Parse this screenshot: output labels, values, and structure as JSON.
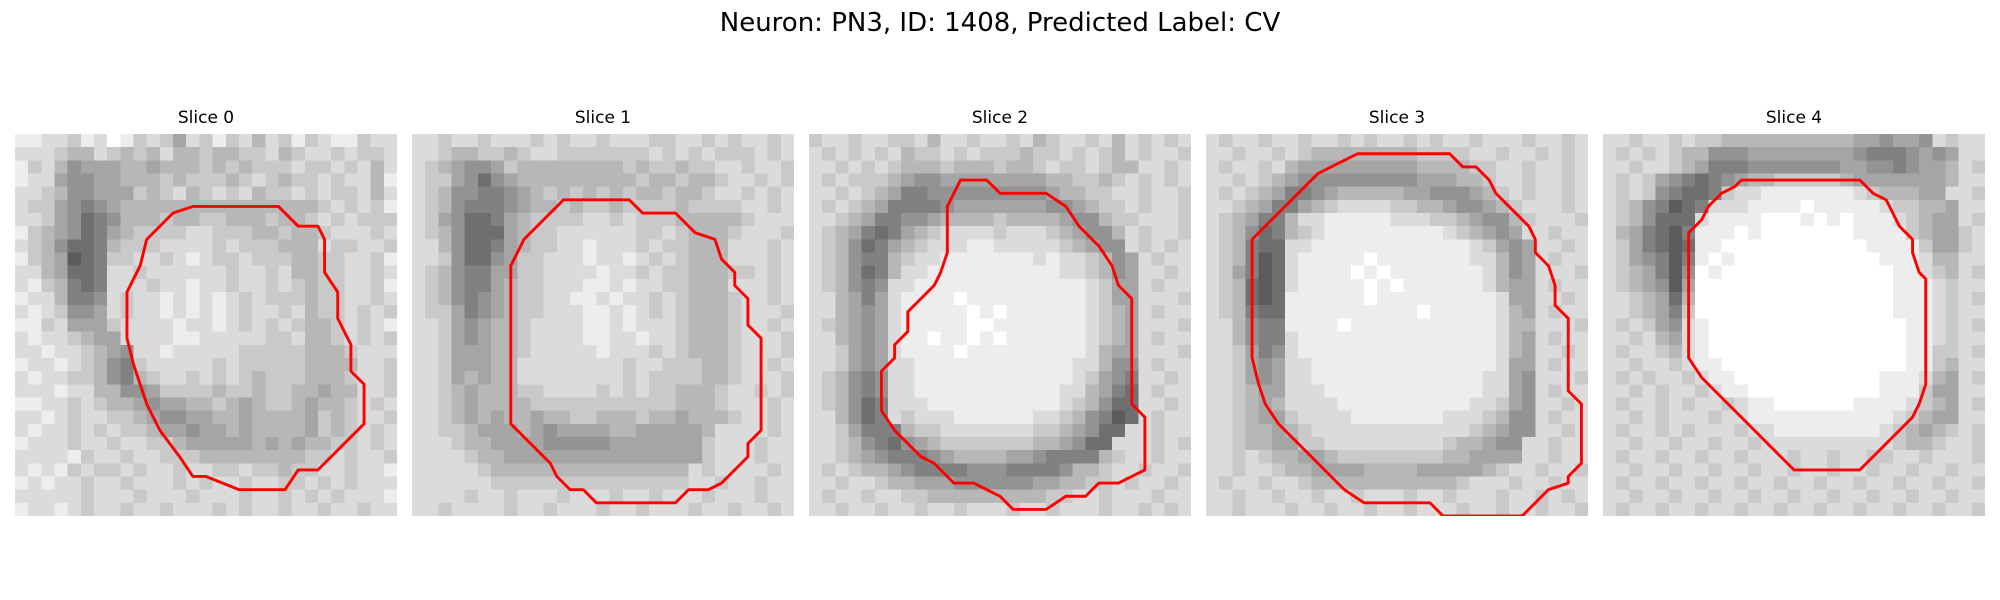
{
  "figure": {
    "title": "Neuron: PN3, ID: 1408, Predicted Label: CV"
  },
  "panels": [
    {
      "title": "Slice 0",
      "colors": {
        "contour": "#ff0000",
        "dark": "#000000",
        "light": "#ffffff"
      },
      "contour": [
        [
          13.5,
          5.5
        ],
        [
          20,
          5.5
        ],
        [
          21.5,
          7
        ],
        [
          23,
          7
        ],
        [
          23.5,
          8
        ],
        [
          23.5,
          10.5
        ],
        [
          24.5,
          12
        ],
        [
          24.5,
          14
        ],
        [
          25.5,
          16
        ],
        [
          25.5,
          18
        ],
        [
          26.5,
          19
        ],
        [
          26.5,
          22
        ],
        [
          23,
          25.5
        ],
        [
          21.5,
          25.5
        ],
        [
          20.5,
          27
        ],
        [
          17,
          27
        ],
        [
          14.5,
          26
        ],
        [
          13.5,
          26
        ],
        [
          12.5,
          24.5
        ],
        [
          11,
          22.5
        ],
        [
          10,
          20.5
        ],
        [
          9,
          17.5
        ],
        [
          8.5,
          15.5
        ],
        [
          8.5,
          12
        ],
        [
          9.5,
          10
        ],
        [
          10,
          8
        ],
        [
          11,
          7
        ],
        [
          12,
          6
        ]
      ],
      "brightness": [
        "bbaa9bacb9a97a9b9a8a9b9abb9aa",
        "aaa988a9898a8898899a89aa9a99a",
        "b9a867778878889898999a99a9a8a",
        "baa766778889899989a9899a9aa8b",
        "aa9866777989a89a9a899a9a99a8a",
        "a99765678888888888888889a9a9b",
        "aa976456888988998889889a9a999",
        "b987645789999aa999889889aaa9a",
        "a9864458999aaaa9a999888a99aa9",
        "b98734599aa9aba99a9998899aa9b",
        "aa87445aa9aaaaaa9aa9a8899aa9a",
        "ab98545aaa9aabaa9aa9a9899aa9b",
        "baa8556a9aabababa9a999899aa9a",
        "aba9667a9aabababa9aa9a899a9a9",
        "bb9a7779aaaabaaba9a9a9889a9ab",
        "abaa9877aaaabbaaaaa99a889a9a9",
        "aabaa9876aabaaaaa999998889aaa",
        "baaba98659aaaaa9a999998888aa9",
        "abaa9986589aa9a9a989998889aa9",
        "aaabaa88667999989989988788aa9",
        "bbaa9a98876778898789987889a9a",
        "aaba9aa9987667788788887989aa9",
        "abaa9a9a998776778788887989a9a",
        "baaa9aa9aa9987777787878899a9a",
        "aaaab9aa9aa9998888888899a9aa9",
        "abab9a99a9aa9aa99a99899aa9aab",
        "babaa9aa9aaa9a9aa9aa99a9a9aaa",
        "aaaaa9aaa9aaa9aaa9aa9a9a9aaab",
        "baaba9aa9aa9aaa9a9aa9aa9aa9aa"
      ]
    },
    {
      "title": "Slice 1",
      "colors": {
        "contour": "#ff0000",
        "dark": "#000000",
        "light": "#ffffff"
      },
      "contour": [
        [
          11.5,
          5
        ],
        [
          16.5,
          5
        ],
        [
          17.5,
          6
        ],
        [
          20,
          6
        ],
        [
          21.5,
          7.5
        ],
        [
          23,
          8
        ],
        [
          23.5,
          9.5
        ],
        [
          24.5,
          10.5
        ],
        [
          24.5,
          11.5
        ],
        [
          25.5,
          12.5
        ],
        [
          25.5,
          14.5
        ],
        [
          26.5,
          15.5
        ],
        [
          26.5,
          22.5
        ],
        [
          25.5,
          23.5
        ],
        [
          25.5,
          24.5
        ],
        [
          24.5,
          25.5
        ],
        [
          23.5,
          26.5
        ],
        [
          22.5,
          27
        ],
        [
          21,
          27
        ],
        [
          20,
          28
        ],
        [
          14,
          28
        ],
        [
          13,
          27
        ],
        [
          12,
          27
        ],
        [
          11,
          26
        ],
        [
          10.5,
          25
        ],
        [
          9.5,
          24
        ],
        [
          8.5,
          23
        ],
        [
          7.5,
          22
        ],
        [
          7.5,
          10
        ],
        [
          8,
          9
        ],
        [
          8.5,
          8
        ],
        [
          9.5,
          7
        ],
        [
          10.5,
          6
        ]
      ],
      "brightness": [
        "aa9aa9aaa9a9aa9aaa99aa9a9aa9a",
        "aa9889989aa9999999a9a9a999a9a",
        "a9876679888888889899899aa9aa9",
        "a99764678888888889889889aa9a9",
        "a9866556789898989889889aa9a9a",
        "a986555678898998999989999aa9a",
        "a976445789999aa9a999888889aaa",
        "a9864447899aaaaaa99a98889aaa9",
        "aa864457899aabaaa9a99888aaa9a",
        "aa96446799aaabaaba9a9888aaa9a",
        "a986557799aaaabaa9a9988899a9a",
        "a986557899aaabbabaa99888aaa9a",
        "a986567899aabbabaa9a98889aa9a",
        "a997567899aaabbaba9a98889aaa9",
        "aa9767889aaaabbabaaa98889aa9a",
        "aa9767889aaaabbaabaa98889aaa9",
        "aa9777889aaaaabaaa9a98889aaa9",
        "aa977788aaaaaaaa9aa999889aa9a",
        "aa978788aaaaaaaa9a9999889aaa9",
        "aa98788899aaaa9a9a998889aa9a9",
        "aa9878888999999999998889aaa9a",
        "aa98787887889988898878889aa9a",
        "aa998777876777788777778aaaa9a",
        "aaa98877776666677777779aaa9aa",
        "aaaa9887777777777777779aaa9aa",
        "aaaaa9888888888888888a9aaaa9a",
        "aaaaaa999999999999999aa9aa9aa",
        "aaaa9aa9aaa9aaa9aa9aaa9aaa9aa",
        "aa9aaaa9aa9aaa9aa9aaa9aa9aa9a"
      ]
    },
    {
      "title": "Slice 2",
      "colors": {
        "contour": "#ff0000",
        "dark": "#000000",
        "light": "#ffffff"
      },
      "contour": [
        [
          11.5,
          3.5
        ],
        [
          13.5,
          3.5
        ],
        [
          14.5,
          4.5
        ],
        [
          18,
          4.5
        ],
        [
          19.5,
          5.5
        ],
        [
          20.5,
          7
        ],
        [
          22,
          8.5
        ],
        [
          23,
          10
        ],
        [
          23.5,
          11.5
        ],
        [
          24.5,
          12.5
        ],
        [
          24.5,
          20.5
        ],
        [
          25.5,
          21.5
        ],
        [
          25.5,
          25.5
        ],
        [
          24.5,
          26
        ],
        [
          23.5,
          26.5
        ],
        [
          22,
          26.5
        ],
        [
          21,
          27.5
        ],
        [
          19.5,
          27.5
        ],
        [
          18,
          28.5
        ],
        [
          15.5,
          28.5
        ],
        [
          14.5,
          27.5
        ],
        [
          13.5,
          27
        ],
        [
          12.5,
          26.5
        ],
        [
          11,
          26.5
        ],
        [
          10,
          25.5
        ],
        [
          9.5,
          25
        ],
        [
          8.5,
          24.5
        ],
        [
          7.5,
          23.5
        ],
        [
          6.5,
          22.5
        ],
        [
          5.5,
          21
        ],
        [
          5.5,
          18
        ],
        [
          6.5,
          17
        ],
        [
          6.5,
          16
        ],
        [
          7.5,
          15
        ],
        [
          7.5,
          13.5
        ],
        [
          8.5,
          12.5
        ],
        [
          9.5,
          11.5
        ],
        [
          10,
          10.5
        ],
        [
          10.5,
          9
        ],
        [
          10.5,
          5.5
        ]
      ],
      "brightness": [
        "9aa9aa99a8aa9aa9a89aa9a8a9a9a",
        "a9a9a9a899a9a999899a9a98a9aa9",
        "aa9a9a988898889889a99a988aa9a",
        "a9a999876677777777889989a9a9a",
        "aa9a9875566666666678899aa9aa9",
        "a9a987555567777777667899a9aa9",
        "aa98755667888898888766899aaa9",
        "a987545789aaaa9aaa987668a9aa9",
        "a98645789aaabbaaaaa98766a9a9a",
        "a9865589aabbbbbbbabaa9867a9aa",
        "a986458aabbbbbbbbbbaa9867aa9a",
        "a98656aabbbbbbbbbbbbba977a9aa",
        "aa8757abbbbcbbbbbbbbba977aaa9",
        "aa8767abbbbbcbcbbbbbba987a9aa",
        "a98767abbbbbccbbbbbbba987aaa9",
        "aa8767abbcbbcbcbbbbbba987a9aa",
        "aa9767abbbbcbbbbbbbbba877aaa9",
        "aa9767aabbbbbbbbbbbbaa866a9aa",
        "a98656aabbbbbbbbbbbba9765aa9a",
        "a98656aabbbbbbbbbbbaa8754a9aa",
        "a98645aaabbbbbbbbbba98644aa9a",
        "aa8645a9aaabbbbbbaa986534a9aa",
        "aa97555899aaaaaaa9987644aa9aa",
        "aa986546789999999887644aaa9a9",
        "aa9876555678888776555589aa9aa",
        "a9a98876555566655556889aa9aa9",
        "aa9aa988777666666778899a9aa9a",
        "a9aa9aa9988888888899aa9aaa9aa",
        "aa9aa9aa9aa9aaa9aa9aaa9aa9a9a"
      ]
    },
    {
      "title": "Slice 3",
      "colors": {
        "contour": "#ff0000",
        "dark": "#000000",
        "light": "#ffffff"
      },
      "contour": [
        [
          11.5,
          1.5
        ],
        [
          18.5,
          1.5
        ],
        [
          19.5,
          2.5
        ],
        [
          20.5,
          2.5
        ],
        [
          21.5,
          3.5
        ],
        [
          22,
          4.5
        ],
        [
          23,
          5.5
        ],
        [
          24.5,
          7
        ],
        [
          25,
          8
        ],
        [
          25,
          9
        ],
        [
          26,
          10
        ],
        [
          26.5,
          11.5
        ],
        [
          26.5,
          13
        ],
        [
          27.5,
          14
        ],
        [
          27.5,
          19.5
        ],
        [
          28.5,
          20.5
        ],
        [
          28.5,
          25
        ],
        [
          27.5,
          26
        ],
        [
          27.5,
          26.5
        ],
        [
          26,
          27
        ],
        [
          25,
          28
        ],
        [
          24,
          29
        ],
        [
          18,
          29
        ],
        [
          17,
          28
        ],
        [
          12,
          28
        ],
        [
          10.5,
          27
        ],
        [
          9.5,
          26
        ],
        [
          8.5,
          25
        ],
        [
          8,
          24.5
        ],
        [
          7.5,
          24
        ],
        [
          6.5,
          23
        ],
        [
          5.5,
          22
        ],
        [
          4.5,
          20.5
        ],
        [
          4,
          19
        ],
        [
          3.5,
          17
        ],
        [
          3.5,
          8
        ],
        [
          4.5,
          7
        ],
        [
          5.5,
          6
        ],
        [
          6.5,
          5
        ],
        [
          7.5,
          4
        ],
        [
          8.5,
          3
        ],
        [
          9.5,
          2.5
        ],
        [
          10.5,
          2
        ]
      ],
      "brightness": [
        "a9aa9aa9aa9a9aa9a9aa9aaa9aa9a",
        "aa9aa9a9888888889999aa9aa9a9a",
        "a9aa9a8777777777888899aa9aa9a",
        "aa9a987666666666777889aa9aa9a",
        "a9a98755678888877666789a9aa9a",
        "aa98755789aaaa9988766789aaa9a",
        "a987558aabbbbbaaa99876689aaa9",
        "a9864589abbbbbbbbba98767aa9aa",
        "a98544aabbbbbbbbbbbba9767aa9a",
        "a98534abbbbbcbbbbbbbaa867a9aa",
        "a97534abbbbcbcbbbbbbba867aaa9",
        "a98434abbbbbcbcbbbbbba877a9aa",
        "a98434bbbbbbcbbbbbbbbba77aa9a",
        "a98544bbbbbbbbbbcbbbbba87a9aa",
        "aa8655bbbbcbbbbbbbbbbba88aaa9",
        "aa8655abbbbbbbbbbbbbbba87a9aa",
        "aa9756abbbbbbbbbbbbbbba87aa9a",
        "aa9767aabbbbbbbbbbbbbba77a9aa",
        "aa9767aabbbbbbbbbbbbbaa76aaa9",
        "aa9877aaabbbbbbbbbbbbaa76a9aa",
        "aa9878aaaabbbbbbbbbbaa976aa9a",
        "aa98779aaaabbbbbbbaaa9866a9aa",
        "aa988789aaaaaaaaaaaa98766aa9a",
        "aa9887799aaaaaaaaa988766aa9aa",
        "aa9a98877899999999887777aa9aa",
        "aa9aa988777788887777789aa9aa9",
        "a9aa9aa9888888888889aaa9aa9aa",
        "aa9aa9aa9aa9aaa9aa9aaa9aa9a9a",
        "aa9aaa9aa9aa9aa9aaa9aa9aa9aa9"
      ]
    },
    {
      "title": "Slice 4",
      "colors": {
        "contour": "#ff0000",
        "dark": "#000000",
        "light": "#ffffff"
      },
      "contour": [
        [
          10.5,
          3.5
        ],
        [
          19.5,
          3.5
        ],
        [
          20.5,
          4.5
        ],
        [
          21.5,
          5
        ],
        [
          22,
          6
        ],
        [
          22.5,
          7
        ],
        [
          23.5,
          8
        ],
        [
          23.5,
          9
        ],
        [
          24,
          10.5
        ],
        [
          24.5,
          11
        ],
        [
          24.5,
          19
        ],
        [
          24,
          20.5
        ],
        [
          23.5,
          21.5
        ],
        [
          22.5,
          22.5
        ],
        [
          21.5,
          23.5
        ],
        [
          20.5,
          24.5
        ],
        [
          19.5,
          25.5
        ],
        [
          14.5,
          25.5
        ],
        [
          13.5,
          24.5
        ],
        [
          12.5,
          23.5
        ],
        [
          11.5,
          22.5
        ],
        [
          10.5,
          21.5
        ],
        [
          9.5,
          20.5
        ],
        [
          8.5,
          19.5
        ],
        [
          7.5,
          18.5
        ],
        [
          6.5,
          17
        ],
        [
          6.5,
          7.5
        ],
        [
          7.5,
          6.5
        ],
        [
          8,
          5.5
        ],
        [
          9,
          4.5
        ],
        [
          10,
          4
        ]
      ],
      "brightness": [
        "aa9aa9a998888888888776776a9aa",
        "a9a9a9886667777777765556767aa",
        "aa9aa9875556666666776656778a9",
        "a9a976545678899999877777778aa",
        "a9a9654459aabbbbbbba988877aa9",
        "a9865345aaabbbbcbbbbba99887aa",
        "a986444abbbbcccbcbcbbba9877a9",
        "a875435bbbcbcccccccbbbb98779a",
        "a975434bbcccccccccccbbbb9779a",
        "a976535bcbcccccccccccbbba88aa",
        "a987536cbcccccccccccccbba98a9",
        "a987637cccccccccccccccbbba9aa",
        "aa98748cccccccccccccccbbba9a9",
        "aa98759cccccccccccccccbbba9aa",
        "a9a976abcccccccccccccccbba9a9",
        "aa9a87abcccccccccccccccbba9aa",
        "a9aa98abcccccccccccccccbb99a9",
        "aa9aa9abbccccccccccccccbb98aa",
        "a9a9aa9abbcccccccccccbbba87a9",
        "aa9a9aa9abbccccccccccbbb977aa",
        "a9aa9a9aa9abbccccccbbbba987a9",
        "aa9a9aaa9aabbbbbbbbbbba9877aa",
        "a9aa9a9aaa9aabbbbbbbba98789a9",
        "aa9aa9aa9aa9aaaaaaaaaa9889aa9",
        "a9aa9aa9aa9aaa9aa9aa99aa9aaa9",
        "aa9aa9aa9aa9aa9aa9aa9aa9aa9aa",
        "a9aa9aa9aa9aa9aa9aa9aa9aa9aa9",
        "aa9aa9aa9aa9aa9aa9aa9aa9aa9aa",
        "a9aa9aa9aa9aa9aa9aa9aa9aa9aa9"
      ]
    }
  ]
}
